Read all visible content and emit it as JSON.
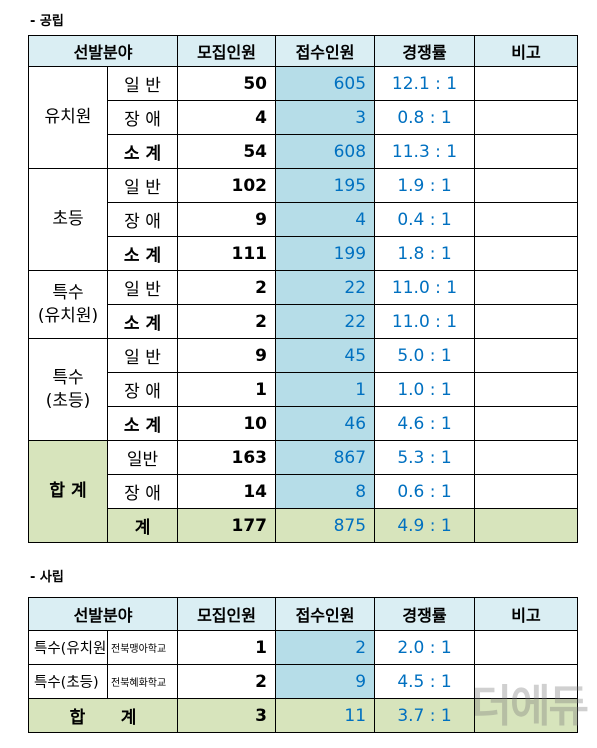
{
  "public": {
    "title": "- 공립",
    "headers": {
      "field": "선발분야",
      "quota": "모집인원",
      "applicants": "접수인원",
      "ratio": "경쟁률",
      "note": "비고"
    },
    "groups": [
      {
        "name": "유치원",
        "rows": [
          {
            "label": "일 반",
            "quota": "50",
            "applicants": "605",
            "ratio": "12.1 : 1"
          },
          {
            "label": "장 애",
            "quota": "4",
            "applicants": "3",
            "ratio": "0.8 : 1"
          },
          {
            "label": "소 계",
            "quota": "54",
            "applicants": "608",
            "ratio": "11.3 : 1"
          }
        ]
      },
      {
        "name": "초등",
        "rows": [
          {
            "label": "일 반",
            "quota": "102",
            "applicants": "195",
            "ratio": "1.9 : 1"
          },
          {
            "label": "장 애",
            "quota": "9",
            "applicants": "4",
            "ratio": "0.4 : 1"
          },
          {
            "label": "소 계",
            "quota": "111",
            "applicants": "199",
            "ratio": "1.8 : 1"
          }
        ]
      },
      {
        "name_line1": "특수",
        "name_line2": "(유치원)",
        "rows": [
          {
            "label": "일 반",
            "quota": "2",
            "applicants": "22",
            "ratio": "11.0 : 1"
          },
          {
            "label": "소 계",
            "quota": "2",
            "applicants": "22",
            "ratio": "11.0 : 1"
          }
        ]
      },
      {
        "name_line1": "특수",
        "name_line2": "(초등)",
        "rows": [
          {
            "label": "일 반",
            "quota": "9",
            "applicants": "45",
            "ratio": "5.0 : 1"
          },
          {
            "label": "장 애",
            "quota": "1",
            "applicants": "1",
            "ratio": "1.0 : 1"
          },
          {
            "label": "소 계",
            "quota": "10",
            "applicants": "46",
            "ratio": "4.6 : 1"
          }
        ]
      },
      {
        "name": "합 계",
        "rows": [
          {
            "label": "일반",
            "quota": "163",
            "applicants": "867",
            "ratio": "5.3 : 1"
          },
          {
            "label": "장 애",
            "quota": "14",
            "applicants": "8",
            "ratio": "0.6 : 1"
          },
          {
            "label": "계",
            "quota": "177",
            "applicants": "875",
            "ratio": "4.9 : 1"
          }
        ]
      }
    ]
  },
  "private": {
    "title": "- 사립",
    "headers": {
      "field": "선발분야",
      "quota": "모집인원",
      "applicants": "접수인원",
      "ratio": "경쟁률",
      "note": "비고"
    },
    "rows": [
      {
        "field": "특수(유치원)",
        "school": "전북맹아학교",
        "quota": "1",
        "applicants": "2",
        "ratio": "2.0 : 1"
      },
      {
        "field": "특수(초등)",
        "school": "전북혜화학교",
        "quota": "2",
        "applicants": "9",
        "ratio": "4.5 : 1"
      }
    ],
    "total": {
      "label": "합      계",
      "quota": "3",
      "applicants": "11",
      "ratio": "3.7 : 1"
    }
  },
  "watermark": {
    "text": "더에듀"
  },
  "colors": {
    "header_bg": "#daeef3",
    "applicants_bg": "#b6dde8",
    "total_bg": "#d7e4bc",
    "number_blue": "#0070c0"
  }
}
